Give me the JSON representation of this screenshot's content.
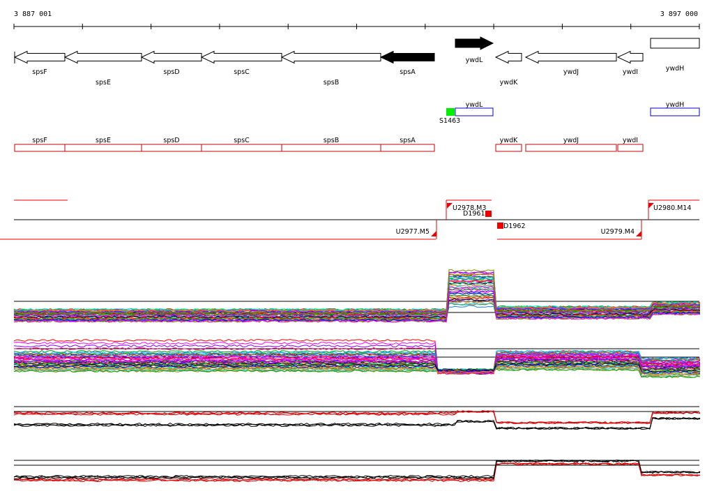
{
  "ruler": {
    "start_label": "3 887 001",
    "end_label": "3 897 000"
  },
  "genes": [
    {
      "name": "spsF",
      "strand": "-",
      "filled": false
    },
    {
      "name": "spsE",
      "strand": "-",
      "filled": false
    },
    {
      "name": "spsD",
      "strand": "-",
      "filled": false
    },
    {
      "name": "spsC",
      "strand": "-",
      "filled": false
    },
    {
      "name": "spsB",
      "strand": "-",
      "filled": false
    },
    {
      "name": "spsA",
      "strand": "-",
      "filled": true
    },
    {
      "name": "ywdL",
      "strand": "+",
      "filled": true
    },
    {
      "name": "ywdK",
      "strand": "-",
      "filled": false
    },
    {
      "name": "ywdJ",
      "strand": "-",
      "filled": false
    },
    {
      "name": "ywdI",
      "strand": "-",
      "filled": false
    },
    {
      "name": "ywdH",
      "strand": "none",
      "filled": false
    }
  ],
  "blue_track": {
    "boxes": [
      "ywdL",
      "ywdH"
    ],
    "marker": {
      "label": "S1463",
      "color": "#00ee00"
    }
  },
  "red_track": {
    "boxes": [
      "spsF",
      "spsE",
      "spsD",
      "spsC",
      "spsB",
      "spsA",
      "ywdK",
      "ywdJ",
      "ywdI"
    ]
  },
  "transcripts": {
    "labels": [
      "U2978.M3",
      "D1961",
      "U2977.M5",
      "D1962",
      "U2979.M4",
      "U2980.M14"
    ]
  },
  "colors": {
    "gene_outline": "#000000",
    "gene_fill": "#000000",
    "blue_box": "#0000cc",
    "red_box": "#cc0000",
    "transcript": "#ee0000"
  }
}
